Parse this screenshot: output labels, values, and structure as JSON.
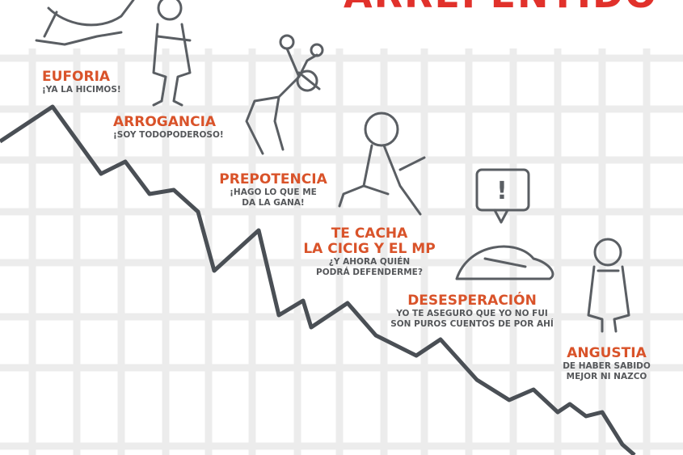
{
  "title": "ARREPENTIDO",
  "colors": {
    "title": "#e1312b",
    "heading": "#d9532a",
    "subtext": "#55575a",
    "line": "#4a4f55",
    "grid": "#ececec"
  },
  "stages": [
    {
      "heading": "EUFORIA",
      "sub1": "¡YA LA HICIMOS!",
      "sub2": ""
    },
    {
      "heading": "ARROGANCIA",
      "sub1": "¡SOY TODOPODEROSO!",
      "sub2": ""
    },
    {
      "heading": "PREPOTENCIA",
      "sub1": "¡HAGO LO QUE ME",
      "sub2": "DA LA GANA!"
    },
    {
      "heading": "TE CACHA",
      "heading2": "LA CICIG Y EL MP",
      "sub1": "¿Y AHORA QUIÉN",
      "sub2": "PODRÁ DEFENDERME?"
    },
    {
      "heading": "DESESPERACIÓN",
      "sub1": "YO TE ASEGURO QUE YO NO FUI",
      "sub2": "SON PUROS CUENTOS DE POR AHÍ"
    },
    {
      "heading": "ANGUSTIA",
      "sub1": "DE HABER SABIDO",
      "sub2": "MEJOR NI NAZCO"
    }
  ],
  "speech_bubble": "!"
}
